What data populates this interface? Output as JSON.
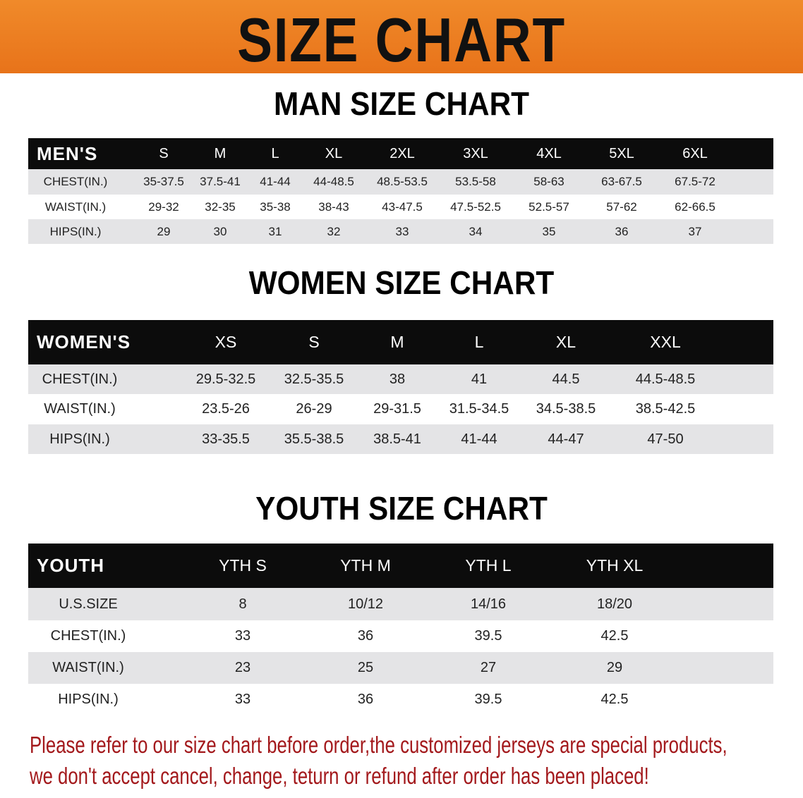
{
  "banner": {
    "title": "SIZE CHART",
    "color": "#e8731a"
  },
  "men": {
    "title": "MAN SIZE CHART",
    "header": [
      "MEN'S",
      "S",
      "M",
      "L",
      "XL",
      "2XL",
      "3XL",
      "4XL",
      "5XL",
      "6XL"
    ],
    "rows": [
      [
        "CHEST(IN.)",
        "35-37.5",
        "37.5-41",
        "41-44",
        "44-48.5",
        "48.5-53.5",
        "53.5-58",
        "58-63",
        "63-67.5",
        "67.5-72"
      ],
      [
        "WAIST(IN.)",
        "29-32",
        "32-35",
        "35-38",
        "38-43",
        "43-47.5",
        "47.5-52.5",
        "52.5-57",
        "57-62",
        "62-66.5"
      ],
      [
        "HIPS(IN.)",
        "29",
        "30",
        "31",
        "32",
        "33",
        "34",
        "35",
        "36",
        "37"
      ]
    ]
  },
  "women": {
    "title": "WOMEN SIZE CHART",
    "header": [
      "WOMEN'S",
      "XS",
      "S",
      "M",
      "L",
      "XL",
      "XXL"
    ],
    "rows": [
      [
        "CHEST(IN.)",
        "29.5-32.5",
        "32.5-35.5",
        "38",
        "41",
        "44.5",
        "44.5-48.5"
      ],
      [
        "WAIST(IN.)",
        "23.5-26",
        "26-29",
        "29-31.5",
        "31.5-34.5",
        "34.5-38.5",
        "38.5-42.5"
      ],
      [
        "HIPS(IN.)",
        "33-35.5",
        "35.5-38.5",
        "38.5-41",
        "41-44",
        "44-47",
        "47-50"
      ]
    ]
  },
  "youth": {
    "title": "YOUTH SIZE CHART",
    "header": [
      "YOUTH",
      "YTH S",
      "YTH M",
      "YTH L",
      "YTH XL"
    ],
    "rows": [
      [
        "U.S.SIZE",
        "8",
        "10/12",
        "14/16",
        "18/20"
      ],
      [
        "CHEST(IN.)",
        "33",
        "36",
        "39.5",
        "42.5"
      ],
      [
        "WAIST(IN.)",
        "23",
        "25",
        "27",
        "29"
      ],
      [
        "HIPS(IN.)",
        "33",
        "36",
        "39.5",
        "42.5"
      ]
    ]
  },
  "notice": {
    "line1": "Please refer to our size chart before order,the customized jerseys are special products,",
    "line2": "we don't accept cancel, change, teturn or refund after order has been placed!",
    "color": "#a3191c"
  }
}
